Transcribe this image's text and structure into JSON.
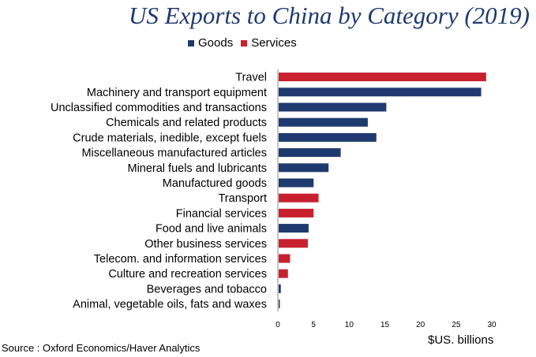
{
  "chart_data": {
    "type": "bar",
    "orientation": "horizontal",
    "title": "US Exports to China by Category (2019)",
    "xlabel": "$US. billions",
    "source": "Source : Oxford Economics/Haver Analytics",
    "xlim": [
      0,
      30
    ],
    "xticks": [
      0,
      5,
      10,
      15,
      20,
      25,
      30
    ],
    "legend_position": "top",
    "series_colors": {
      "Goods": "#1f3a6e",
      "Services": "#c8202f"
    },
    "legend": [
      {
        "name": "Goods",
        "color": "#1f3a6e"
      },
      {
        "name": "Services",
        "color": "#c8202f"
      }
    ],
    "categories": [
      "Travel",
      "Machinery and transport equipment",
      "Unclassified commodities and transactions",
      "Chemicals and related products",
      "Crude materials, inedible, except fuels",
      "Miscellaneous manufactured articles",
      "Mineral fuels and lubricants",
      "Manufactured goods",
      "Transport",
      "Financial services",
      "Food and live animals",
      "Other business services",
      "Telecom. and information services",
      "Culture and recreation services",
      "Beverages and tobacco",
      "Animal, vegetable oils, fats and waxes"
    ],
    "values": [
      29.1,
      28.4,
      15.1,
      12.5,
      13.7,
      8.7,
      7.0,
      4.9,
      5.6,
      4.9,
      4.2,
      4.1,
      1.6,
      1.3,
      0.3,
      0.1
    ],
    "series_type": [
      "Services",
      "Goods",
      "Goods",
      "Goods",
      "Goods",
      "Goods",
      "Goods",
      "Goods",
      "Services",
      "Services",
      "Goods",
      "Services",
      "Services",
      "Services",
      "Goods",
      "Goods"
    ]
  }
}
